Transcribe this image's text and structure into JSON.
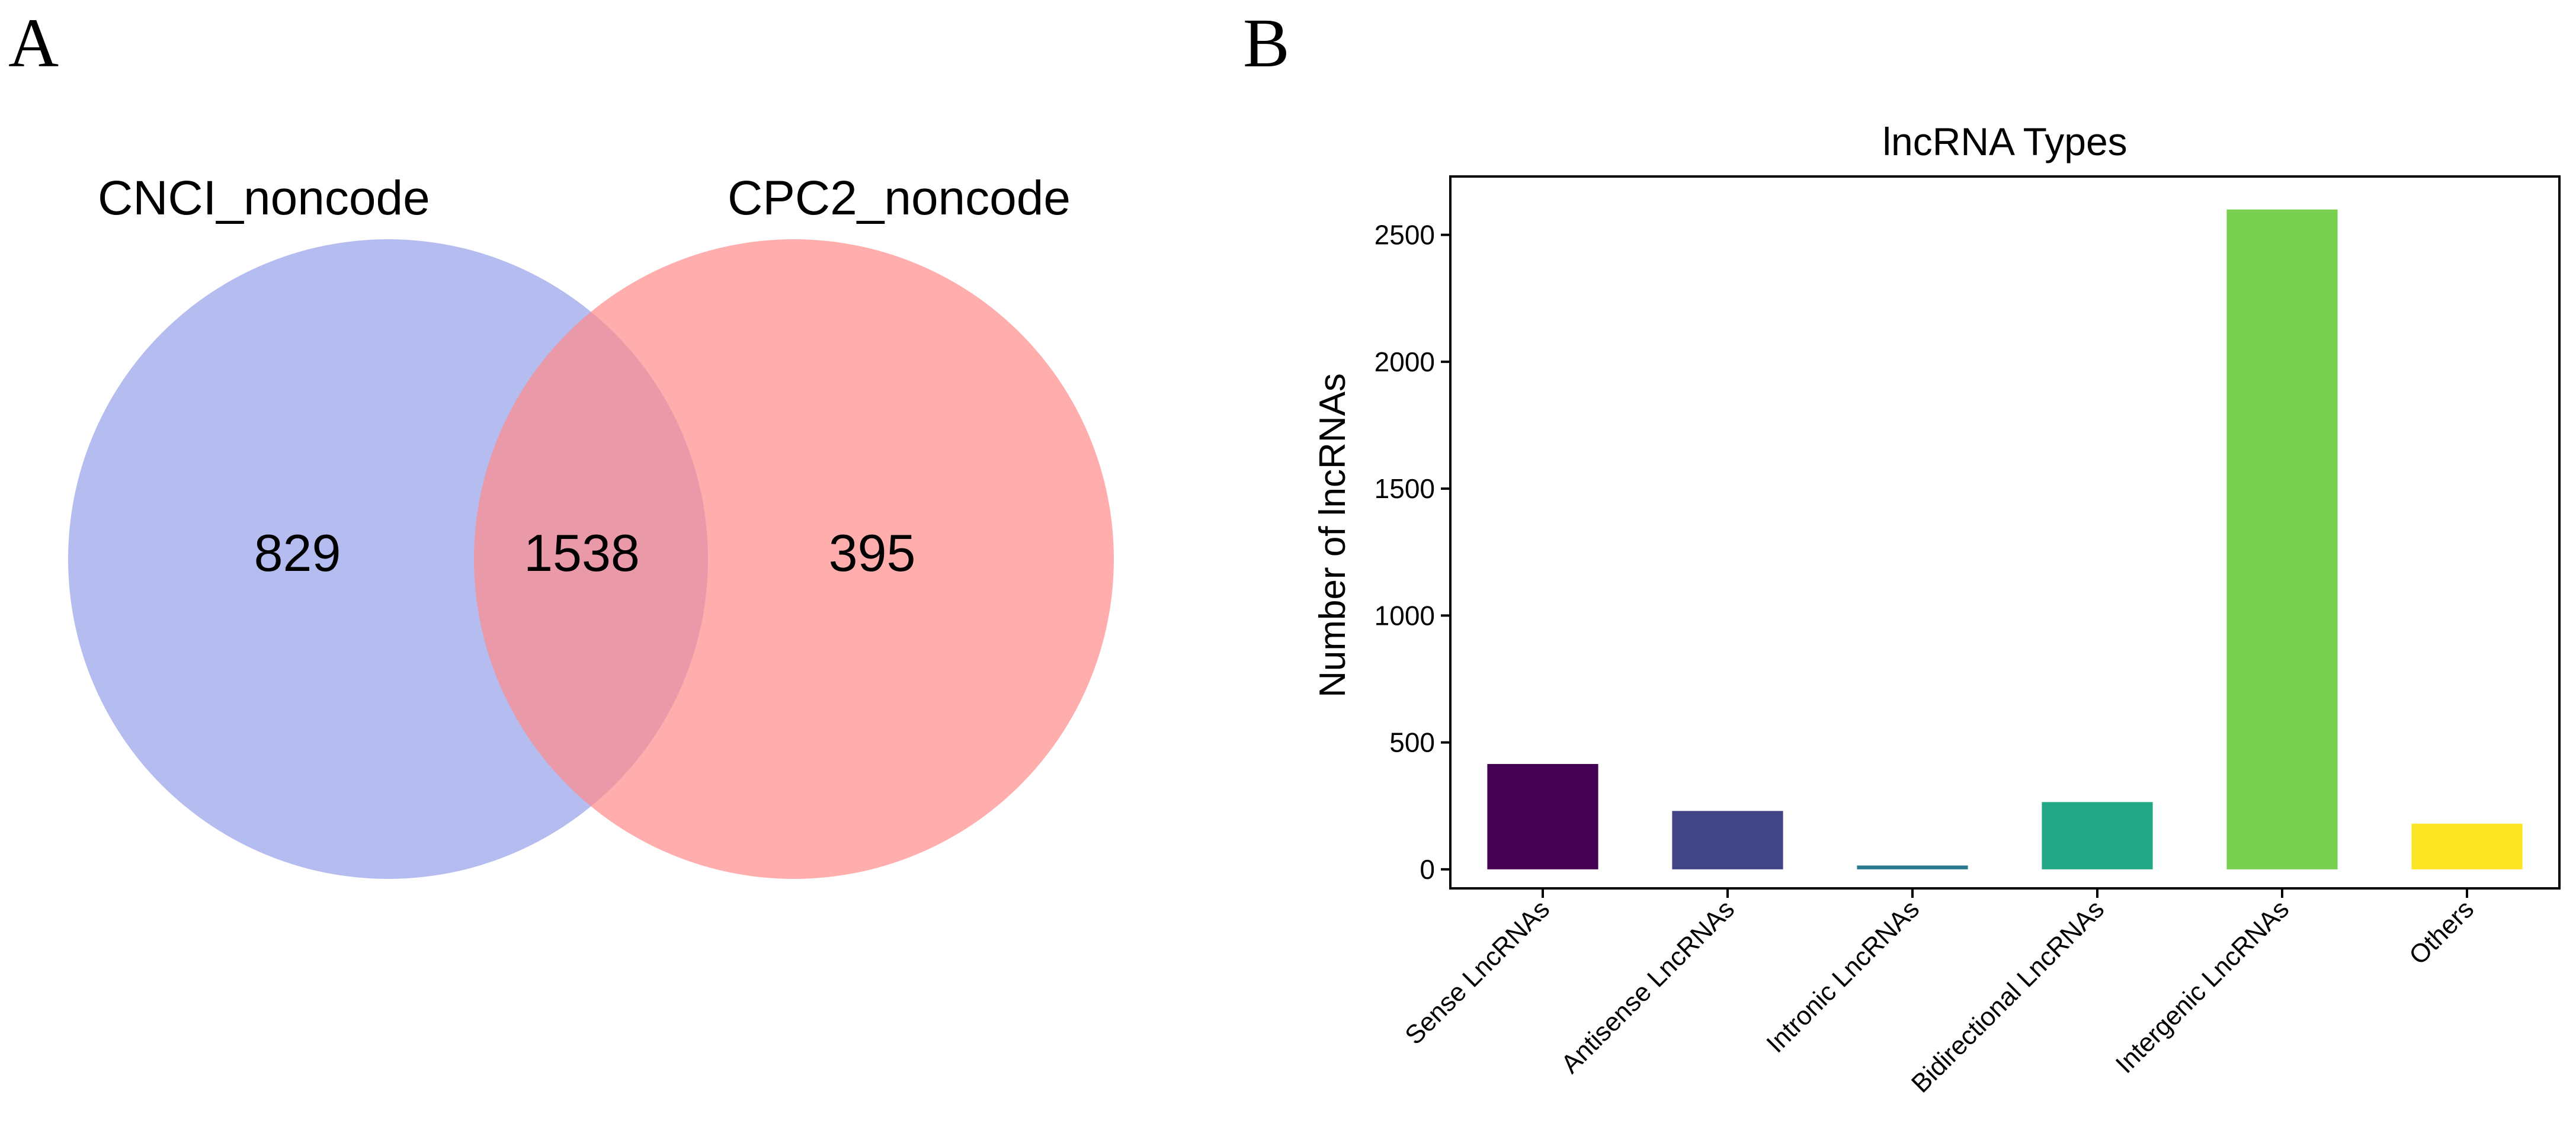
{
  "panels": {
    "a_label": "A",
    "b_label": "B"
  },
  "venn": {
    "left_set": "CNCI_noncode",
    "right_set": "CPC2_noncode",
    "left_only": "829",
    "intersection": "1538",
    "right_only": "395",
    "left_color": "#8e98e6",
    "right_color": "#ff8a8a"
  },
  "chart_data": {
    "type": "bar",
    "title": "lncRNA Types",
    "xlabel": "",
    "ylabel": "Number of lncRNAs",
    "categories": [
      "Sense LncRNAs",
      "Antisense LncRNAs",
      "Intronic LncRNAs",
      "Bidirectional LncRNAs",
      "Intergenic LncRNAs",
      "Others"
    ],
    "values": [
      415,
      230,
      15,
      265,
      2600,
      180
    ],
    "colors": [
      "#440154",
      "#414487",
      "#2a788e",
      "#22a884",
      "#7ad151",
      "#fde725"
    ],
    "yticks": [
      0,
      500,
      1000,
      1500,
      2000,
      2500
    ],
    "ytick_labels": [
      "0",
      "500",
      "1000",
      "1500",
      "2000",
      "2500"
    ],
    "ylim": [
      -75,
      2730
    ],
    "grid": false
  }
}
